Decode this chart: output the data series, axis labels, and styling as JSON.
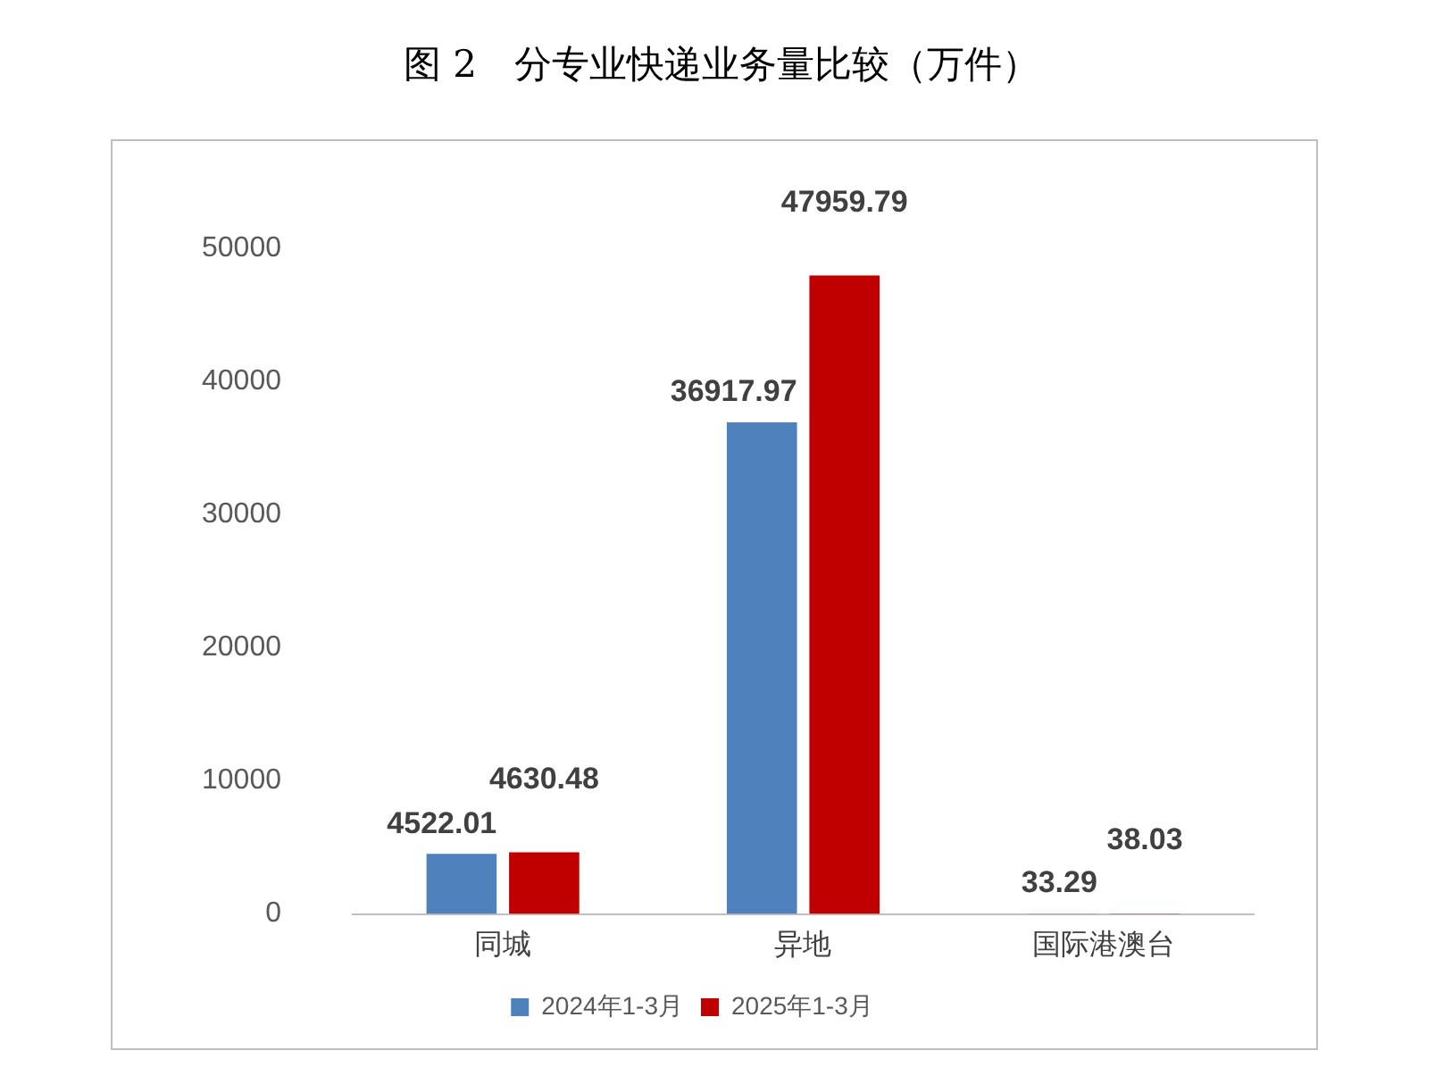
{
  "chart_data": {
    "type": "bar",
    "title": "图 2　分专业快递业务量比较（万件）",
    "categories": [
      "同城",
      "异地",
      "国际港澳台"
    ],
    "series": [
      {
        "name": "2024年1-3月",
        "color": "#4f81bd",
        "values": [
          4522.01,
          36917.97,
          33.29
        ]
      },
      {
        "name": "2025年1-3月",
        "color": "#c00000",
        "values": [
          4630.48,
          47959.79,
          38.03
        ]
      }
    ],
    "ylim": [
      0,
      50000
    ],
    "yticks": [
      0,
      10000,
      20000,
      30000,
      40000,
      50000
    ],
    "grid": false,
    "legend": "bottom",
    "data_labels": true
  }
}
